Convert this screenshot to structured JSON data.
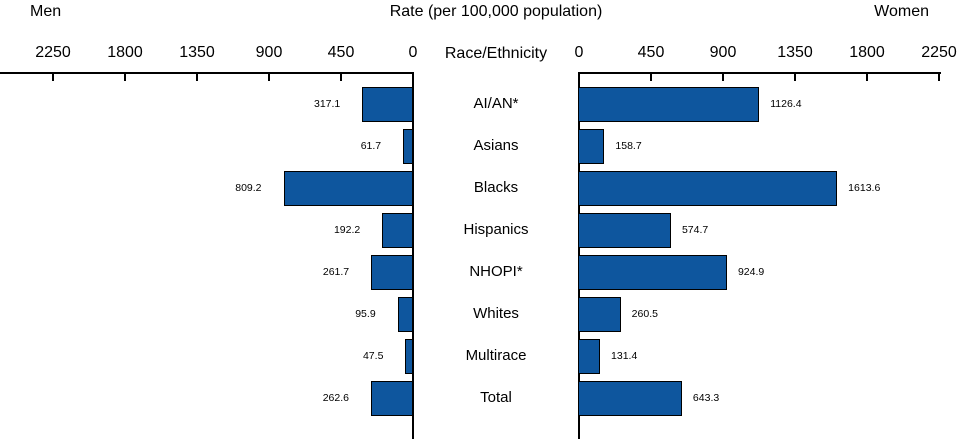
{
  "header": {
    "left": "Men",
    "center": "Rate (per 100,000 population)",
    "right": "Women"
  },
  "axis": {
    "center_label": "Race/Ethnicity",
    "left_ticks": [
      2250,
      1800,
      1350,
      900,
      450,
      0
    ],
    "right_ticks": [
      0,
      450,
      900,
      1350,
      1800,
      2250
    ]
  },
  "colors": {
    "bar": "#0E569E",
    "axis": "#000000",
    "text": "#000000"
  },
  "chart_data": {
    "type": "bar",
    "layout": "bilateral-horizontal",
    "title": "Rate (per 100,000 population)",
    "category_axis_label": "Race/Ethnicity",
    "categories": [
      "AI/AN*",
      "Asians",
      "Blacks",
      "Hispanics",
      "NHOPI*",
      "Whites",
      "Multirace",
      "Total"
    ],
    "series": [
      {
        "name": "Men",
        "side": "left",
        "values": [
          317.1,
          61.7,
          809.2,
          192.2,
          261.7,
          95.9,
          47.5,
          262.6
        ]
      },
      {
        "name": "Women",
        "side": "right",
        "values": [
          1126.4,
          158.7,
          1613.6,
          574.7,
          924.9,
          260.5,
          131.4,
          643.3
        ]
      }
    ],
    "axis_range": [
      0,
      2250
    ],
    "tick_step": 450,
    "grid": false,
    "value_labels": true,
    "legend_position": "top-outer"
  }
}
